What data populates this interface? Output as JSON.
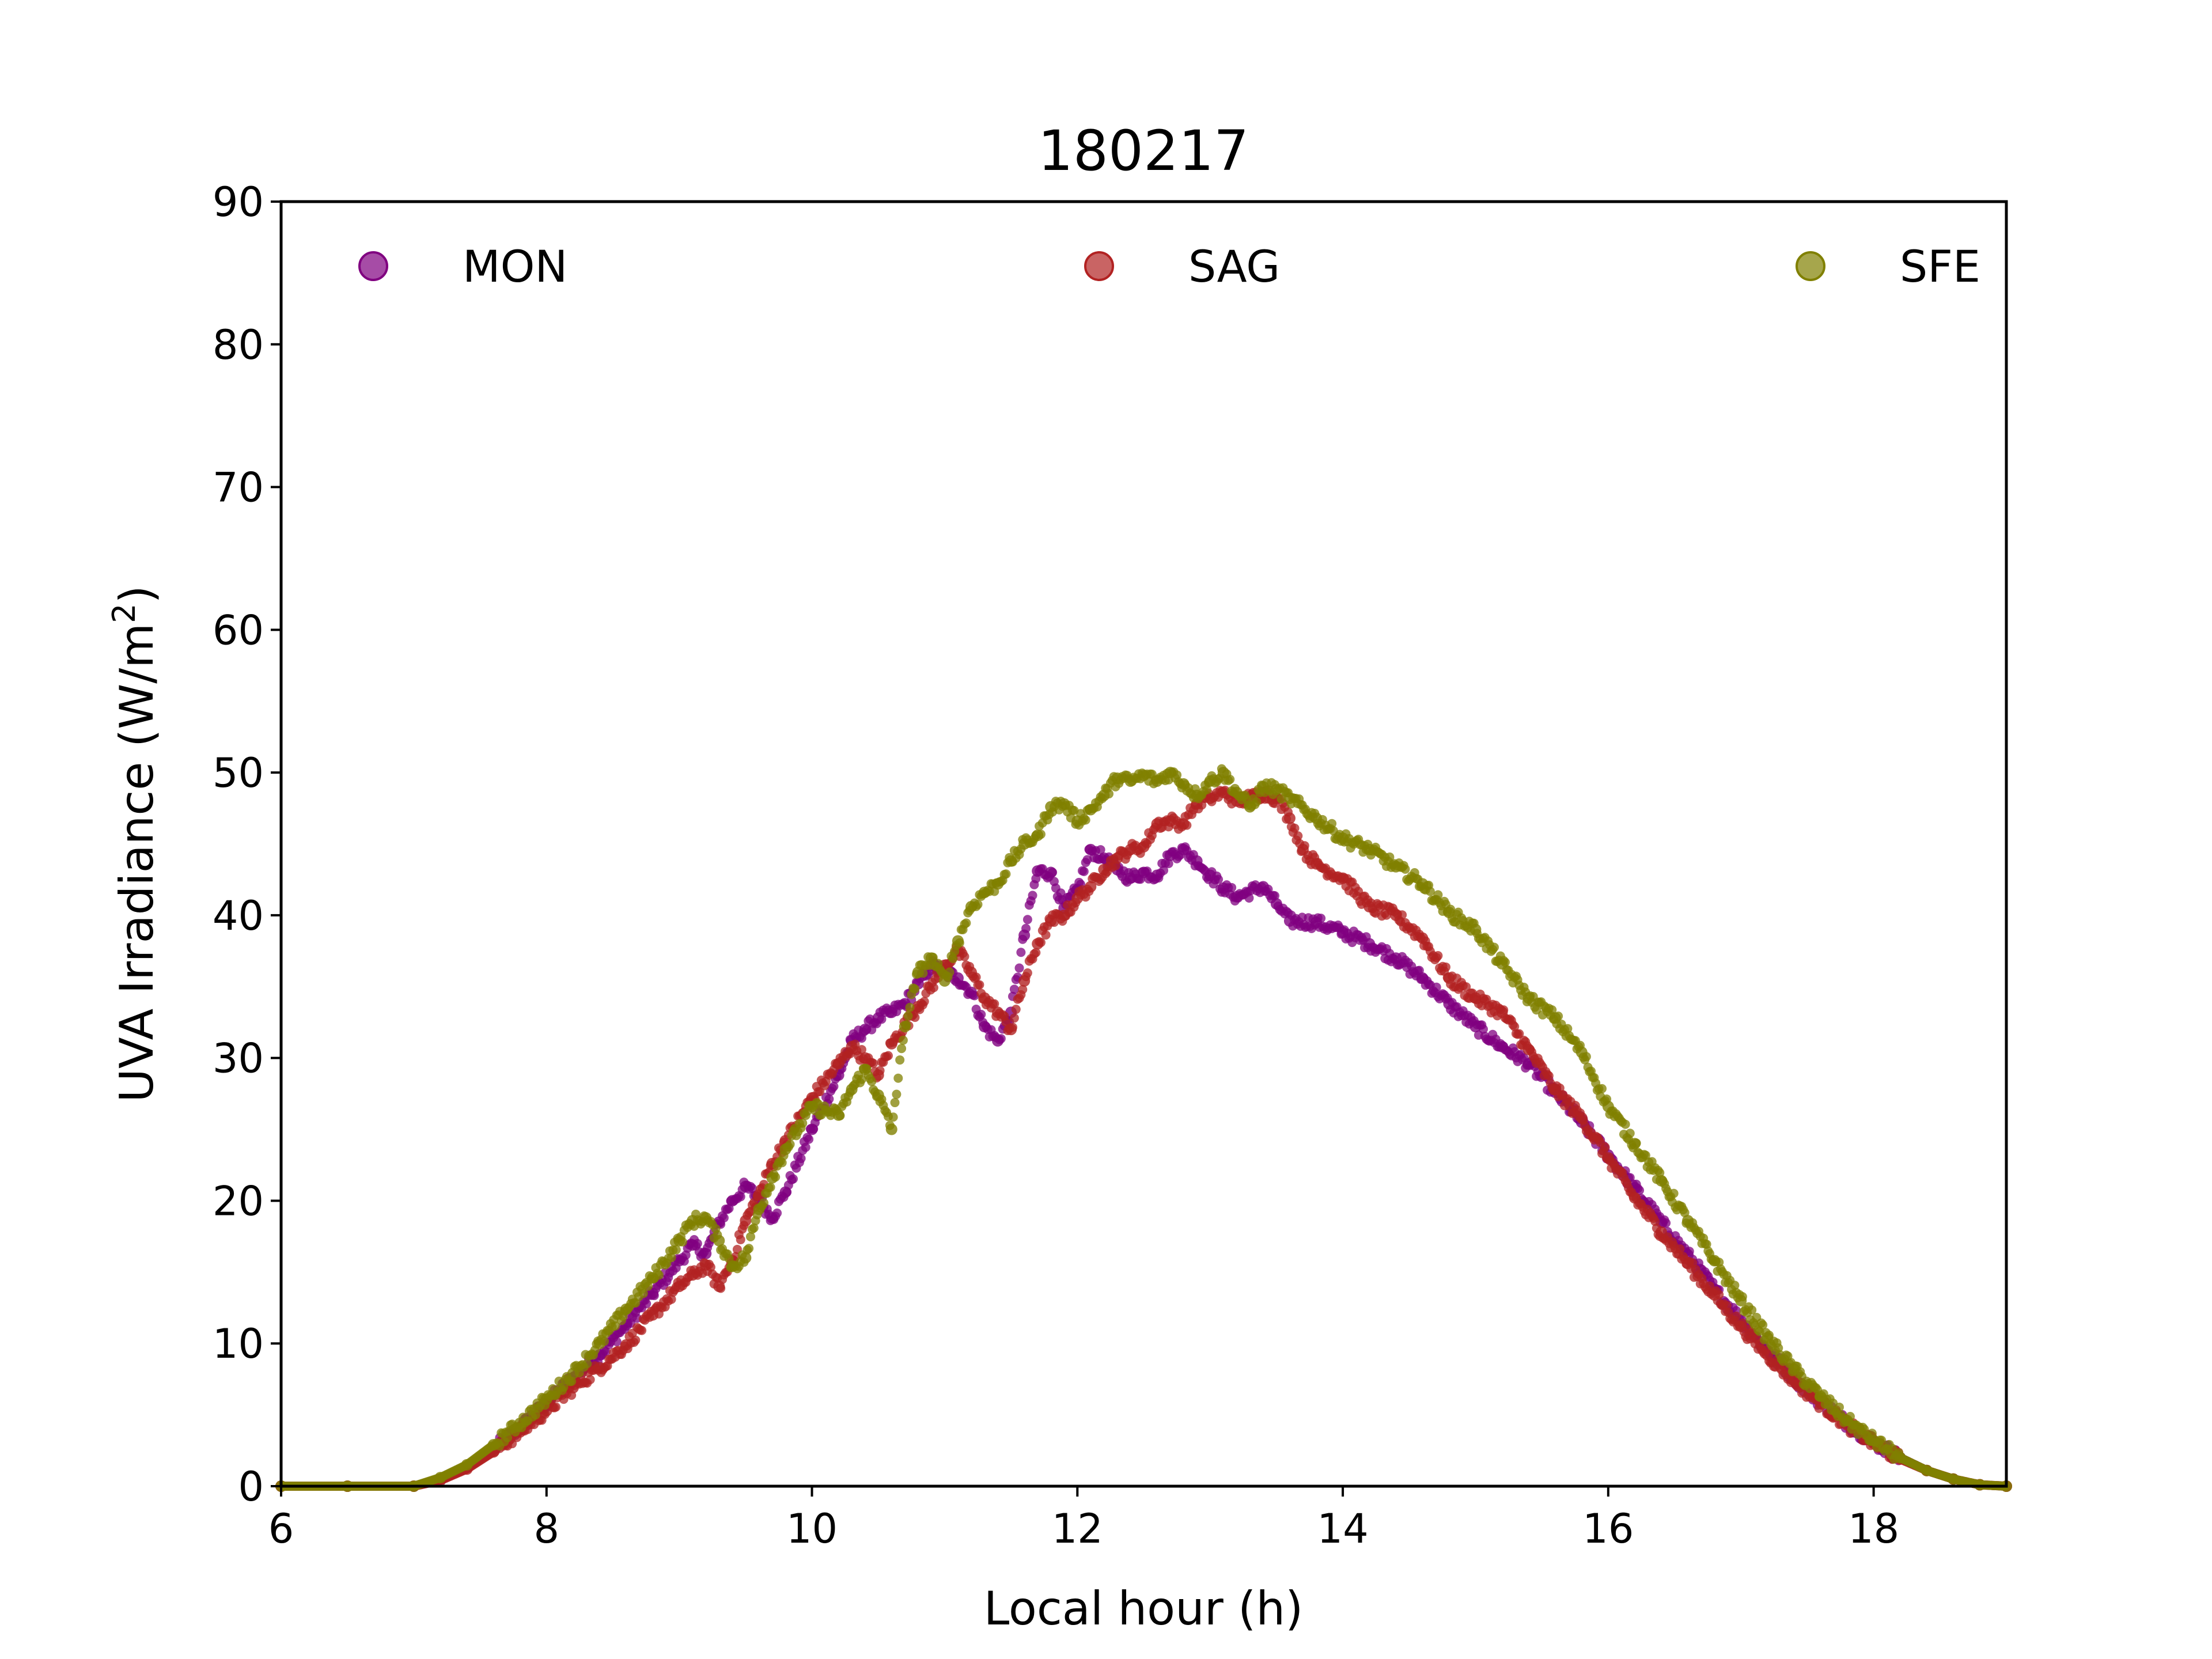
{
  "chart_data": {
    "type": "scatter",
    "title": "180217",
    "xlabel": "Local hour (h)",
    "ylabel": "UVA Irradiance (W/m²)",
    "ylabel_main": "UVA Irradiance (W/m",
    "ylabel_sup": "2",
    "ylabel_end": ")",
    "xlim": [
      6,
      19
    ],
    "ylim": [
      0,
      90
    ],
    "xticks": [
      6,
      8,
      10,
      12,
      14,
      16,
      18
    ],
    "yticks": [
      0,
      10,
      20,
      30,
      40,
      50,
      60,
      70,
      80,
      90
    ],
    "grid": false,
    "legend_position": "top, spread horizontally",
    "series": [
      {
        "name": "MON",
        "color": "#800080",
        "points": [
          [
            6.0,
            0.0
          ],
          [
            6.5,
            0.0
          ],
          [
            7.0,
            0.0
          ],
          [
            7.2,
            0.5
          ],
          [
            7.4,
            1.3
          ],
          [
            7.6,
            2.6
          ],
          [
            7.8,
            4.1
          ],
          [
            8.0,
            5.8
          ],
          [
            8.2,
            7.6
          ],
          [
            8.4,
            9.2
          ],
          [
            8.6,
            11.3
          ],
          [
            8.8,
            13.5
          ],
          [
            9.0,
            15.8
          ],
          [
            9.1,
            16.9
          ],
          [
            9.2,
            16.3
          ],
          [
            9.3,
            18.5
          ],
          [
            9.4,
            20.0
          ],
          [
            9.5,
            21.0
          ],
          [
            9.6,
            20.2
          ],
          [
            9.7,
            18.8
          ],
          [
            9.8,
            20.6
          ],
          [
            10.0,
            25.0
          ],
          [
            10.2,
            28.8
          ],
          [
            10.3,
            31.2
          ],
          [
            10.4,
            32.0
          ],
          [
            10.5,
            32.8
          ],
          [
            10.6,
            33.2
          ],
          [
            10.7,
            33.8
          ],
          [
            10.8,
            35.2
          ],
          [
            10.9,
            36.5
          ],
          [
            11.0,
            36.0
          ],
          [
            11.1,
            35.6
          ],
          [
            11.2,
            34.6
          ],
          [
            11.3,
            32.2
          ],
          [
            11.4,
            31.2
          ],
          [
            11.5,
            33.2
          ],
          [
            11.6,
            38.6
          ],
          [
            11.7,
            43.1
          ],
          [
            11.8,
            43.0
          ],
          [
            11.9,
            40.5
          ],
          [
            12.0,
            41.8
          ],
          [
            12.1,
            44.6
          ],
          [
            12.2,
            44.0
          ],
          [
            12.3,
            43.2
          ],
          [
            12.4,
            42.6
          ],
          [
            12.5,
            43.0
          ],
          [
            12.6,
            42.8
          ],
          [
            12.7,
            44.2
          ],
          [
            12.8,
            44.6
          ],
          [
            12.9,
            43.8
          ],
          [
            13.0,
            42.8
          ],
          [
            13.1,
            41.9
          ],
          [
            13.2,
            41.3
          ],
          [
            13.4,
            42.0
          ],
          [
            13.5,
            40.8
          ],
          [
            13.6,
            39.6
          ],
          [
            13.8,
            39.5
          ],
          [
            14.0,
            38.8
          ],
          [
            14.2,
            38.0
          ],
          [
            14.4,
            37.0
          ],
          [
            14.6,
            35.6
          ],
          [
            14.8,
            33.8
          ],
          [
            15.0,
            32.2
          ],
          [
            15.2,
            30.8
          ],
          [
            15.4,
            29.6
          ],
          [
            15.6,
            27.6
          ],
          [
            15.8,
            25.5
          ],
          [
            16.0,
            23.2
          ],
          [
            16.2,
            20.9
          ],
          [
            16.4,
            18.5
          ],
          [
            16.6,
            16.2
          ],
          [
            16.8,
            13.8
          ],
          [
            17.0,
            11.6
          ],
          [
            17.2,
            9.5
          ],
          [
            17.4,
            7.6
          ],
          [
            17.6,
            5.9
          ],
          [
            17.8,
            4.4
          ],
          [
            18.0,
            3.1
          ],
          [
            18.2,
            2.0
          ],
          [
            18.4,
            1.1
          ],
          [
            18.6,
            0.5
          ],
          [
            18.8,
            0.1
          ],
          [
            19.0,
            0.0
          ]
        ]
      },
      {
        "name": "SAG",
        "color": "#B22222",
        "points": [
          [
            6.0,
            0.0
          ],
          [
            6.5,
            0.0
          ],
          [
            7.0,
            0.0
          ],
          [
            7.2,
            0.4
          ],
          [
            7.4,
            1.2
          ],
          [
            7.6,
            2.4
          ],
          [
            7.8,
            3.8
          ],
          [
            8.0,
            5.3
          ],
          [
            8.2,
            6.9
          ],
          [
            8.4,
            8.3
          ],
          [
            8.6,
            9.9
          ],
          [
            8.8,
            12.0
          ],
          [
            9.0,
            14.0
          ],
          [
            9.1,
            14.8
          ],
          [
            9.2,
            15.5
          ],
          [
            9.3,
            14.0
          ],
          [
            9.4,
            15.8
          ],
          [
            9.5,
            18.6
          ],
          [
            9.6,
            20.4
          ],
          [
            9.7,
            22.6
          ],
          [
            9.8,
            24.2
          ],
          [
            10.0,
            27.2
          ],
          [
            10.2,
            29.6
          ],
          [
            10.3,
            30.8
          ],
          [
            10.4,
            30.0
          ],
          [
            10.5,
            28.8
          ],
          [
            10.6,
            31.0
          ],
          [
            10.8,
            33.6
          ],
          [
            11.0,
            36.5
          ],
          [
            11.1,
            37.5
          ],
          [
            11.2,
            36.0
          ],
          [
            11.3,
            34.2
          ],
          [
            11.4,
            33.2
          ],
          [
            11.5,
            32.0
          ],
          [
            11.6,
            35.4
          ],
          [
            11.7,
            38.0
          ],
          [
            11.8,
            39.6
          ],
          [
            11.9,
            40.0
          ],
          [
            12.0,
            41.2
          ],
          [
            12.1,
            42.0
          ],
          [
            12.2,
            43.2
          ],
          [
            12.3,
            44.0
          ],
          [
            12.4,
            44.6
          ],
          [
            12.5,
            44.8
          ],
          [
            12.6,
            46.4
          ],
          [
            12.7,
            46.6
          ],
          [
            12.8,
            46.4
          ],
          [
            12.9,
            47.8
          ],
          [
            13.0,
            48.2
          ],
          [
            13.1,
            48.6
          ],
          [
            13.2,
            48.0
          ],
          [
            13.3,
            48.2
          ],
          [
            13.4,
            48.6
          ],
          [
            13.5,
            48.2
          ],
          [
            13.6,
            46.8
          ],
          [
            13.7,
            44.6
          ],
          [
            13.8,
            43.6
          ],
          [
            14.0,
            42.6
          ],
          [
            14.2,
            40.6
          ],
          [
            14.4,
            40.0
          ],
          [
            14.6,
            38.4
          ],
          [
            14.8,
            35.6
          ],
          [
            15.0,
            34.2
          ],
          [
            15.2,
            33.2
          ],
          [
            15.4,
            30.6
          ],
          [
            15.6,
            27.8
          ],
          [
            15.8,
            25.8
          ],
          [
            16.0,
            23.0
          ],
          [
            16.2,
            20.2
          ],
          [
            16.4,
            17.8
          ],
          [
            16.6,
            15.6
          ],
          [
            16.8,
            13.4
          ],
          [
            17.0,
            11.2
          ],
          [
            17.2,
            9.2
          ],
          [
            17.4,
            7.4
          ],
          [
            17.6,
            5.8
          ],
          [
            17.8,
            4.3
          ],
          [
            18.0,
            3.0
          ],
          [
            18.2,
            1.9
          ],
          [
            18.4,
            1.1
          ],
          [
            18.6,
            0.5
          ],
          [
            18.8,
            0.1
          ],
          [
            19.0,
            0.0
          ]
        ]
      },
      {
        "name": "SFE",
        "color": "#808000",
        "points": [
          [
            6.0,
            0.0
          ],
          [
            6.5,
            0.0
          ],
          [
            7.0,
            0.0
          ],
          [
            7.2,
            0.6
          ],
          [
            7.4,
            1.5
          ],
          [
            7.6,
            2.9
          ],
          [
            7.8,
            4.4
          ],
          [
            8.0,
            6.1
          ],
          [
            8.2,
            7.9
          ],
          [
            8.4,
            10.0
          ],
          [
            8.6,
            12.4
          ],
          [
            8.8,
            14.6
          ],
          [
            9.0,
            17.2
          ],
          [
            9.1,
            18.6
          ],
          [
            9.2,
            18.8
          ],
          [
            9.3,
            17.2
          ],
          [
            9.4,
            15.4
          ],
          [
            9.5,
            16.0
          ],
          [
            9.6,
            19.4
          ],
          [
            9.7,
            21.6
          ],
          [
            9.8,
            23.6
          ],
          [
            10.0,
            26.6
          ],
          [
            10.2,
            26.0
          ],
          [
            10.3,
            27.8
          ],
          [
            10.4,
            29.2
          ],
          [
            10.5,
            27.4
          ],
          [
            10.6,
            25.0
          ],
          [
            10.7,
            32.2
          ],
          [
            10.8,
            36.0
          ],
          [
            10.9,
            37.0
          ],
          [
            11.0,
            35.4
          ],
          [
            11.1,
            38.2
          ],
          [
            11.2,
            40.6
          ],
          [
            11.3,
            41.6
          ],
          [
            11.4,
            42.2
          ],
          [
            11.5,
            43.8
          ],
          [
            11.6,
            45.0
          ],
          [
            11.7,
            45.6
          ],
          [
            11.8,
            47.6
          ],
          [
            11.9,
            47.8
          ],
          [
            12.0,
            46.6
          ],
          [
            12.1,
            47.4
          ],
          [
            12.2,
            48.4
          ],
          [
            12.3,
            49.6
          ],
          [
            12.4,
            49.4
          ],
          [
            12.5,
            49.8
          ],
          [
            12.6,
            49.4
          ],
          [
            12.7,
            50.0
          ],
          [
            12.8,
            49.2
          ],
          [
            12.9,
            48.4
          ],
          [
            13.0,
            49.4
          ],
          [
            13.1,
            50.0
          ],
          [
            13.2,
            48.6
          ],
          [
            13.3,
            47.6
          ],
          [
            13.4,
            49.0
          ],
          [
            13.5,
            48.8
          ],
          [
            13.6,
            48.2
          ],
          [
            13.8,
            46.8
          ],
          [
            14.0,
            45.4
          ],
          [
            14.2,
            44.6
          ],
          [
            14.4,
            43.4
          ],
          [
            14.6,
            42.2
          ],
          [
            14.8,
            40.2
          ],
          [
            15.0,
            39.0
          ],
          [
            15.2,
            36.6
          ],
          [
            15.4,
            34.2
          ],
          [
            15.6,
            32.8
          ],
          [
            15.8,
            30.4
          ],
          [
            16.0,
            26.6
          ],
          [
            16.2,
            24.0
          ],
          [
            16.4,
            21.4
          ],
          [
            16.6,
            18.6
          ],
          [
            16.8,
            15.8
          ],
          [
            17.0,
            13.0
          ],
          [
            17.2,
            10.4
          ],
          [
            17.4,
            8.2
          ],
          [
            17.6,
            6.3
          ],
          [
            17.8,
            4.6
          ],
          [
            18.0,
            3.2
          ],
          [
            18.2,
            2.0
          ],
          [
            18.4,
            1.1
          ],
          [
            18.6,
            0.5
          ],
          [
            18.8,
            0.1
          ],
          [
            19.0,
            0.0
          ]
        ]
      }
    ]
  }
}
